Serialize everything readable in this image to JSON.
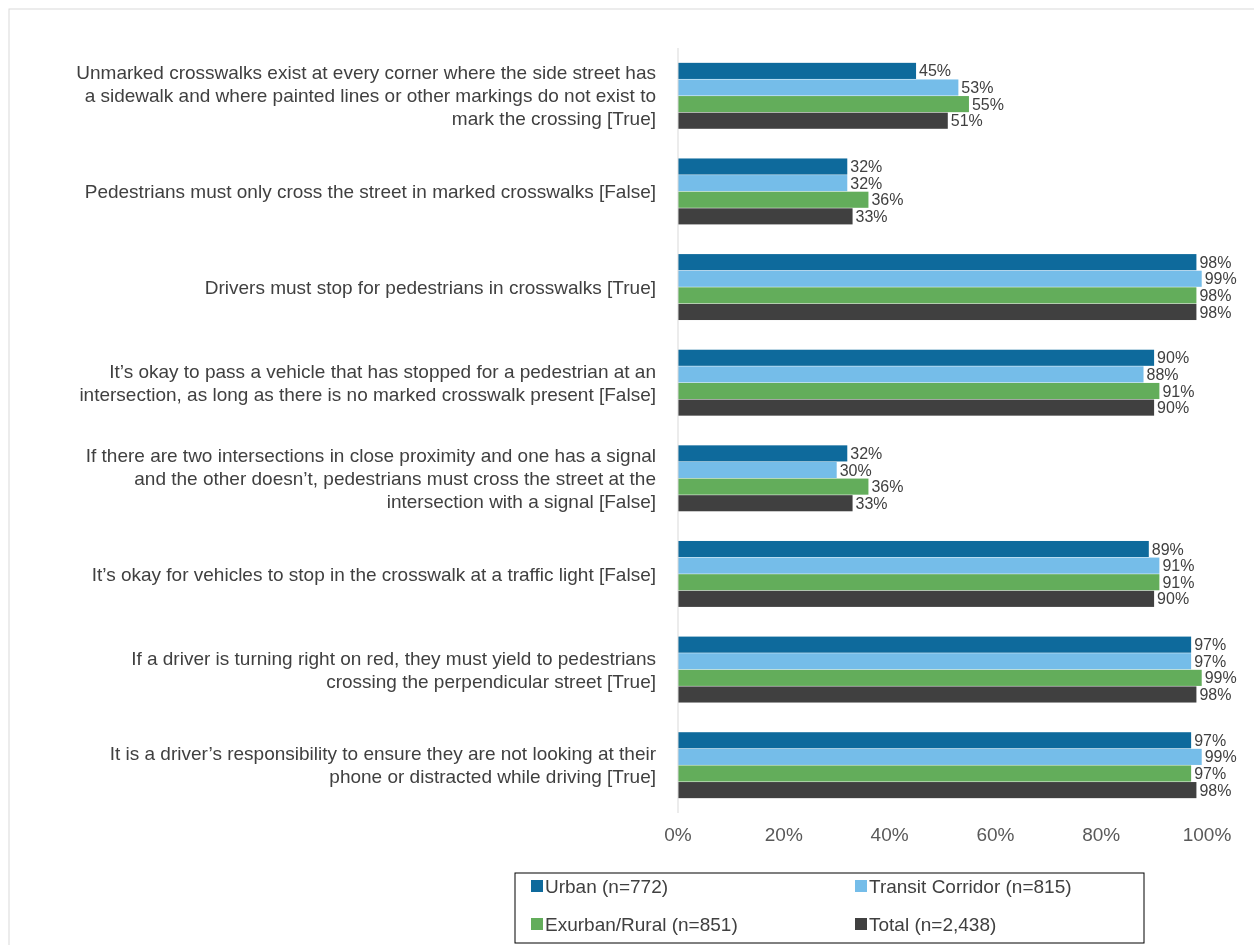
{
  "chart_data": {
    "type": "bar",
    "orientation": "horizontal",
    "categories": [
      "Unmarked crosswalks exist at every corner where the side street has a sidewalk and where painted lines or other markings do not exist to mark the crossing [True]",
      "Pedestrians must only cross the street in marked crosswalks [False]",
      "Drivers must stop for pedestrians in crosswalks [True]",
      "It’s okay to pass a vehicle that has stopped for a pedestrian at an intersection, as long as there is no marked crosswalk present [False]",
      "If there are two intersections in close proximity and one has a signal and the other doesn’t, pedestrians must cross the street at the intersection with a signal [False]",
      "It’s okay for vehicles to stop in the crosswalk at a traffic light [False]",
      "If a driver is turning right on red, they must yield to pedestrians crossing the perpendicular street [True]",
      "It is a driver’s responsibility to ensure they are not looking at their phone or distracted while driving [True]"
    ],
    "series": [
      {
        "name": "Urban (n=772)",
        "color": "#0e6a9c",
        "values": [
          45,
          32,
          98,
          90,
          32,
          89,
          97,
          97
        ],
        "value_labels": [
          "45%",
          "32%",
          "98%",
          "90%",
          "32%",
          "89%",
          "97%",
          "97%"
        ]
      },
      {
        "name": "Transit Corridor (n=815)",
        "color": "#75bde9",
        "values": [
          53,
          32,
          99,
          88,
          30,
          91,
          97,
          99
        ],
        "value_labels": [
          "53%",
          "32%",
          "99%",
          "88%",
          "30%",
          "91%",
          "97%",
          "99%"
        ]
      },
      {
        "name": "Exurban/Rural (n=851)",
        "color": "#63ad5b",
        "values": [
          55,
          36,
          98,
          91,
          36,
          91,
          99,
          97
        ],
        "value_labels": [
          "55%",
          "36%",
          "98%",
          "91%",
          "36%",
          "91%",
          "99%",
          "97%"
        ]
      },
      {
        "name": "Total (n=2,438)",
        "color": "#404040",
        "values": [
          51,
          33,
          98,
          90,
          33,
          90,
          98,
          98
        ],
        "value_labels": [
          "51%",
          "33%",
          "98%",
          "90%",
          "33%",
          "90%",
          "98%",
          "98%"
        ]
      }
    ],
    "xlim": [
      0,
      100
    ],
    "xticks": [
      {
        "value": 0,
        "label": "0%"
      },
      {
        "value": 20,
        "label": "20%"
      },
      {
        "value": 40,
        "label": "40%"
      },
      {
        "value": 60,
        "label": "60%"
      },
      {
        "value": 80,
        "label": "80%"
      },
      {
        "value": 100,
        "label": "100%"
      }
    ],
    "legend": "bottom",
    "grid": false
  }
}
